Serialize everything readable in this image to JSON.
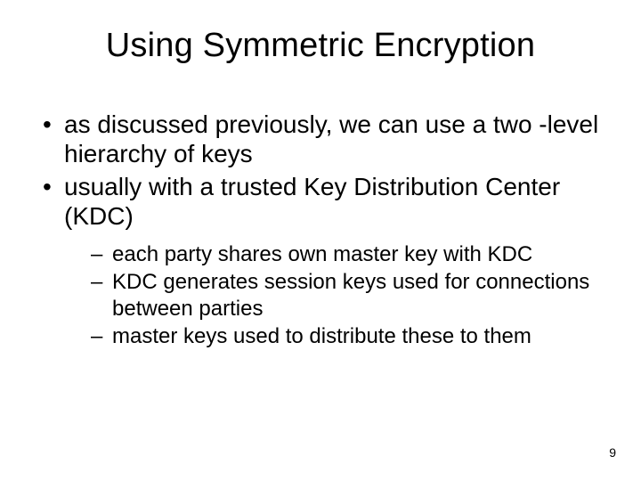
{
  "slide": {
    "background_color": "#ffffff",
    "text_color": "#000000",
    "font_family": "Arial",
    "title": {
      "text": "Using Symmetric Encryption",
      "fontsize": 38,
      "align": "center"
    },
    "bullets_level1_fontsize": 28,
    "bullets_level2_fontsize": 24,
    "bullets": [
      "as discussed previously, we can use a two -level hierarchy of keys",
      "usually with a trusted Key Distribution Center (KDC)"
    ],
    "sub_bullets": [
      "each party shares own master key with KDC",
      "KDC generates session keys used for connections between parties",
      "master keys used to distribute these to them"
    ],
    "page_number": "9",
    "page_number_fontsize": 14
  }
}
